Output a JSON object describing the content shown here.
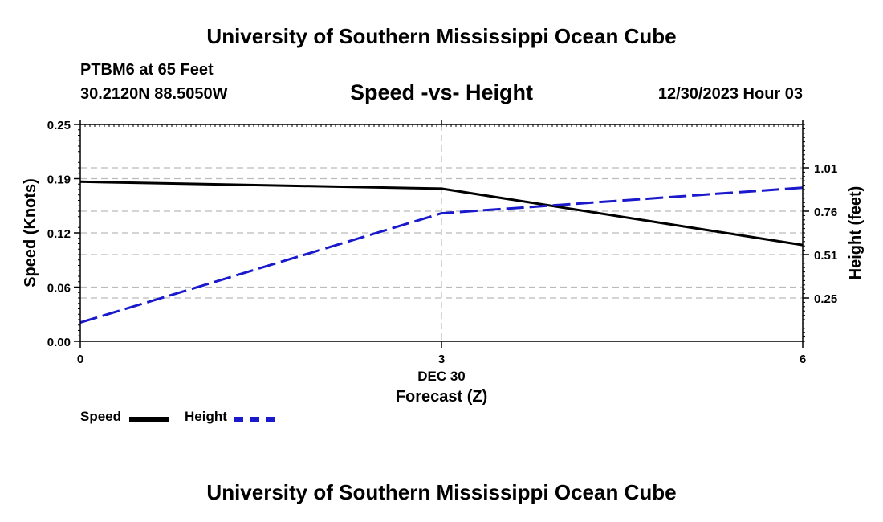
{
  "header": {
    "title": "University of Southern Mississippi Ocean Cube",
    "station": "PTBM6 at 65 Feet",
    "coords": "30.2120N  88.5050W",
    "date_hour": "12/30/2023 Hour 03"
  },
  "footer": {
    "title": "University of Southern Mississippi Ocean Cube"
  },
  "chart_data": {
    "type": "line",
    "title": "Speed -vs- Height",
    "xlabel": "Forecast (Z)",
    "x_date_label": "DEC 30",
    "x": [
      0,
      3,
      6
    ],
    "x_tick_labels": [
      "0",
      "3",
      "6"
    ],
    "xlim": [
      0,
      6
    ],
    "ylabel_left": "Speed (Knots)",
    "ylim_left": [
      0,
      0.25
    ],
    "y_ticks_left": [
      "0.00",
      "0.06",
      "0.12",
      "0.19",
      "0.25"
    ],
    "y_tick_values_left": [
      0,
      0.0625,
      0.125,
      0.1875,
      0.25
    ],
    "ylabel_right": "Height (feet)",
    "ylim_right": [
      0,
      1.27
    ],
    "y_ticks_right": [
      "0.25",
      "0.51",
      "0.76",
      "1.01"
    ],
    "y_tick_values_right": [
      0.254,
      0.508,
      0.762,
      1.016
    ],
    "grid": true,
    "series": [
      {
        "name": "Speed",
        "axis": "left",
        "color": "#000000",
        "dashed": false,
        "values": [
          0.184,
          0.176,
          0.111
        ]
      },
      {
        "name": "Height",
        "axis": "right",
        "color": "#1a1acc",
        "dashed": true,
        "values": [
          0.11,
          0.75,
          0.9
        ]
      }
    ],
    "legend": {
      "position": "bottom-left",
      "entries": [
        "Speed",
        "Height"
      ]
    }
  },
  "colors": {
    "speed": "#000000",
    "height": "#1a1acc",
    "grid": "#bbbbbb"
  }
}
